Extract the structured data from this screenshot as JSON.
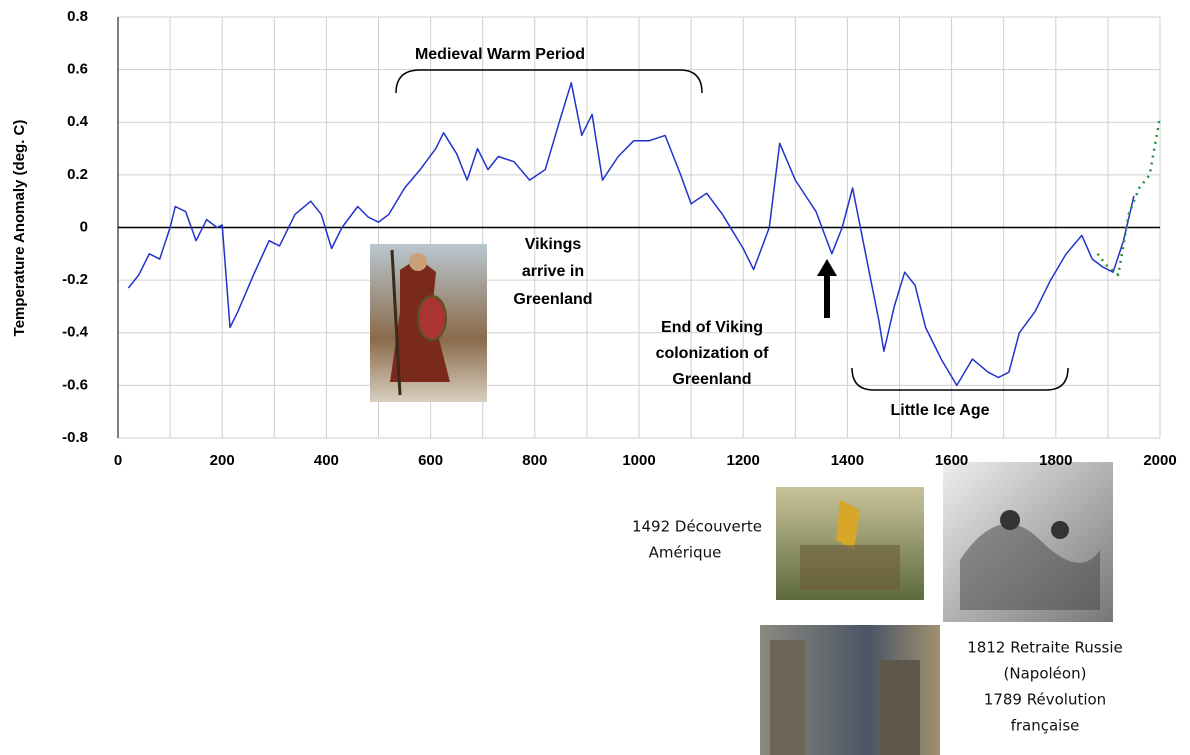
{
  "chart_data": {
    "type": "line",
    "y_label": "Temperature Anomaly (deg. C)",
    "xlim": [
      0,
      2000
    ],
    "xticks": [
      0,
      200,
      400,
      600,
      800,
      1000,
      1200,
      1400,
      1600,
      1800,
      2000
    ],
    "xgrid_minor": [
      100,
      300,
      500,
      700,
      900,
      1100,
      1300,
      1500,
      1700,
      1900
    ],
    "ylim": [
      -0.8,
      0.8
    ],
    "yticks": [
      0.8,
      0.6,
      0.4,
      0.2,
      0,
      -0.2,
      -0.4,
      -0.6,
      -0.8
    ],
    "grid": true,
    "series": [
      {
        "color": "#2233cc",
        "dash": false,
        "x": [
          20,
          40,
          60,
          80,
          100,
          110,
          130,
          150,
          170,
          190,
          200,
          215,
          230,
          260,
          290,
          310,
          340,
          370,
          390,
          410,
          430,
          460,
          480,
          500,
          520,
          550,
          580,
          610,
          625,
          650,
          670,
          690,
          710,
          730,
          760,
          790,
          820,
          850,
          870,
          890,
          910,
          930,
          960,
          990,
          1020,
          1050,
          1080,
          1100,
          1130,
          1160,
          1200,
          1220,
          1250,
          1270,
          1300,
          1320,
          1340,
          1370,
          1390,
          1410,
          1430,
          1460,
          1470,
          1490,
          1510,
          1530,
          1550,
          1580,
          1610,
          1640,
          1670,
          1690,
          1710,
          1730,
          1760,
          1790,
          1820,
          1850,
          1870,
          1890,
          1910,
          1930,
          1950
        ],
        "values": [
          -0.23,
          -0.18,
          -0.1,
          -0.12,
          0.0,
          0.08,
          0.06,
          -0.05,
          0.03,
          0.0,
          0.01,
          -0.38,
          -0.32,
          -0.18,
          -0.05,
          -0.07,
          0.05,
          0.1,
          0.05,
          -0.08,
          0.0,
          0.08,
          0.04,
          0.02,
          0.05,
          0.15,
          0.22,
          0.3,
          0.36,
          0.28,
          0.18,
          0.3,
          0.22,
          0.27,
          0.25,
          0.18,
          0.22,
          0.42,
          0.55,
          0.35,
          0.43,
          0.18,
          0.27,
          0.33,
          0.33,
          0.35,
          0.2,
          0.09,
          0.13,
          0.05,
          -0.08,
          -0.16,
          0.0,
          0.32,
          0.18,
          0.12,
          0.06,
          -0.1,
          0.0,
          0.15,
          -0.05,
          -0.35,
          -0.47,
          -0.3,
          -0.17,
          -0.22,
          -0.38,
          -0.5,
          -0.6,
          -0.5,
          -0.55,
          -0.57,
          -0.55,
          -0.4,
          -0.32,
          -0.2,
          -0.1,
          -0.03,
          -0.12,
          -0.15,
          -0.17,
          -0.05,
          0.12
        ]
      },
      {
        "color": "#2e8b3a",
        "dash": true,
        "x": [
          1880,
          1900,
          1920,
          1940,
          1960,
          1980,
          2000
        ],
        "values": [
          -0.1,
          -0.15,
          -0.18,
          0.05,
          0.15,
          0.2,
          0.42
        ]
      }
    ],
    "annotations": {
      "medieval": "Medieval Warm Period",
      "vikings": [
        "Vikings",
        "arrive in",
        "Greenland"
      ],
      "end_viking": [
        "End of Viking",
        "colonization of",
        "Greenland"
      ],
      "little_ice_age": "Little Ice Age",
      "columbus": [
        "1492 Découverte",
        "Amérique"
      ],
      "events": [
        "1812 Retraite Russie",
        "(Napoléon)",
        "1789 Révolution",
        "française"
      ]
    }
  }
}
